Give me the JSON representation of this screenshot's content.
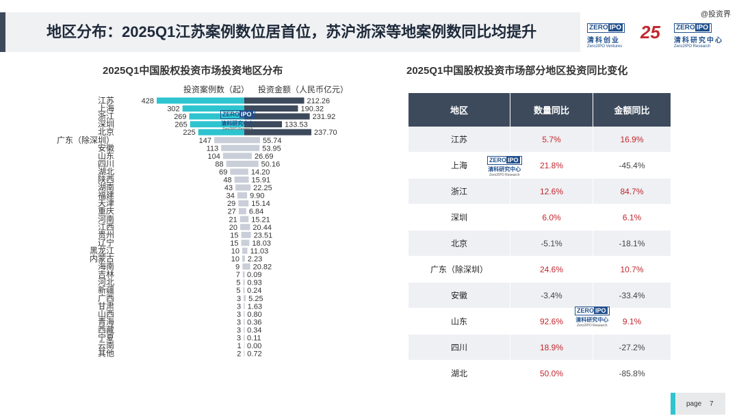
{
  "header": {
    "title": "地区分布：2025Q1江苏案例数位居首位，苏沪浙深等地案例数同比均提升",
    "watermark": "@投资界",
    "logo_zero": "ZERO",
    "logo_ipo": "IPO",
    "logo_cn": "清科创业",
    "logo_en": "Zero2IPO Ventures",
    "logo_25": "25",
    "logo2_cn": "清科研究中心",
    "logo2_en": "Zero2IPO Research"
  },
  "stamp": {
    "zero": "ZERO",
    "ipo": "IPO",
    "cn": "清科研究中心",
    "en": "Zero2IPO Research"
  },
  "left_chart": {
    "title": "2025Q1中国股权投资市场投资地区分布",
    "legend_count": "投资案例数（起）",
    "legend_amount": "投资金额（人民币亿元）"
  },
  "chart_data": {
    "type": "bar",
    "title": "2025Q1中国股权投资市场投资地区分布",
    "categories": [
      "江苏",
      "上海",
      "浙江",
      "深圳",
      "北京",
      "广东（除深圳）",
      "安徽",
      "山东",
      "四川",
      "湖北",
      "陕西",
      "湖南",
      "福建",
      "天津",
      "重庆",
      "河南",
      "江西",
      "贵州",
      "辽宁",
      "黑龙江",
      "内蒙古",
      "海南",
      "吉林",
      "河北",
      "新疆",
      "广西",
      "甘肃",
      "山西",
      "青海",
      "西藏",
      "宁夏",
      "云南",
      "其他"
    ],
    "series": [
      {
        "name": "投资案例数（起）",
        "values": [
          428,
          302,
          269,
          265,
          225,
          147,
          113,
          104,
          88,
          69,
          48,
          43,
          34,
          29,
          27,
          21,
          20,
          15,
          15,
          10,
          10,
          9,
          7,
          5,
          5,
          3,
          3,
          3,
          3,
          3,
          3,
          1,
          2
        ]
      },
      {
        "name": "投资金额（人民币亿元）",
        "values": [
          212.26,
          190.32,
          231.92,
          133.53,
          237.7,
          55.74,
          53.95,
          26.69,
          50.16,
          14.2,
          15.91,
          22.25,
          9.9,
          15.14,
          6.84,
          15.21,
          20.44,
          23.51,
          18.03,
          11.03,
          2.23,
          20.82,
          0.09,
          0.93,
          0.24,
          5.25,
          1.63,
          0.8,
          0.36,
          0.34,
          0.11,
          0.0,
          0.72
        ]
      }
    ],
    "colors": {
      "count_top": "#2ec4cf",
      "count_rest": "#c9ced8",
      "amount_top": "#3d4a5c",
      "amount_rest": "#c9ced8"
    }
  },
  "right_table": {
    "title": "2025Q1中国股权投资市场部分地区投资同比变化",
    "headers": [
      "地区",
      "数量同比",
      "金额同比"
    ],
    "rows": [
      [
        "江苏",
        "5.7%",
        "16.9%"
      ],
      [
        "上海",
        "21.8%",
        "-45.4%"
      ],
      [
        "浙江",
        "12.6%",
        "84.7%"
      ],
      [
        "深圳",
        "6.0%",
        "6.1%"
      ],
      [
        "北京",
        "-5.1%",
        "-18.1%"
      ],
      [
        "广东（除深圳）",
        "24.6%",
        "10.7%"
      ],
      [
        "安徽",
        "-3.4%",
        "-33.4%"
      ],
      [
        "山东",
        "92.6%",
        "9.1%"
      ],
      [
        "四川",
        "18.9%",
        "-27.2%"
      ],
      [
        "湖北",
        "50.0%",
        "-85.8%"
      ]
    ],
    "colors": {
      "header": "#3d4a5c",
      "positive": "#c0262d",
      "negative": "#444444"
    }
  },
  "footer": {
    "page_label": "page",
    "page_number": "7"
  }
}
